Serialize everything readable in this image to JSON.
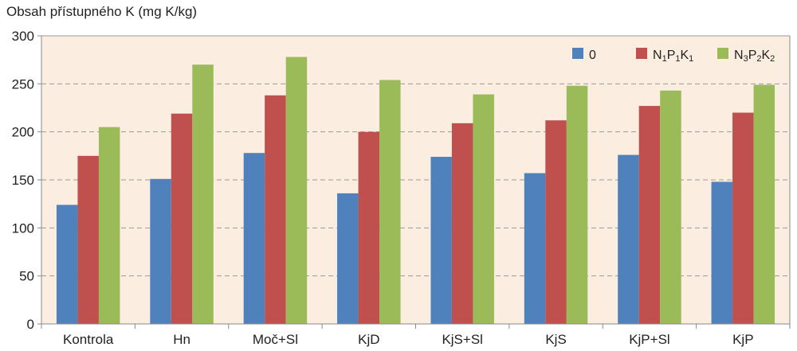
{
  "chart_data": {
    "type": "bar",
    "ylabel": "Obsah přístupného K (mg K/kg)",
    "xlabel": "",
    "title": "",
    "ylim": [
      0,
      300
    ],
    "yticks": [
      0,
      50,
      100,
      150,
      200,
      250,
      300
    ],
    "grid": true,
    "legend_position": "top-right",
    "categories": [
      "Kontrola",
      "Hn",
      "Moč+Sl",
      "KjD",
      "KjS+Sl",
      "KjS",
      "KjP+Sl",
      "KjP"
    ],
    "series": [
      {
        "name": "0",
        "legend": [
          {
            "t": "0",
            "sub": false
          }
        ],
        "color": "#4f81bd",
        "values": [
          124,
          151,
          178,
          136,
          174,
          157,
          176,
          148
        ]
      },
      {
        "name": "N1P1K1",
        "legend": [
          {
            "t": "N",
            "sub": false
          },
          {
            "t": "1",
            "sub": true
          },
          {
            "t": "P",
            "sub": false
          },
          {
            "t": "1",
            "sub": true
          },
          {
            "t": "K",
            "sub": false
          },
          {
            "t": "1",
            "sub": true
          }
        ],
        "color": "#c0504d",
        "values": [
          175,
          219,
          238,
          200,
          209,
          212,
          227,
          220
        ]
      },
      {
        "name": "N3P2K2",
        "legend": [
          {
            "t": "N",
            "sub": false
          },
          {
            "t": "3",
            "sub": true
          },
          {
            "t": "P",
            "sub": false
          },
          {
            "t": "2",
            "sub": true
          },
          {
            "t": "K",
            "sub": false
          },
          {
            "t": "2",
            "sub": true
          }
        ],
        "color": "#9bbb59",
        "values": [
          205,
          270,
          278,
          254,
          239,
          248,
          243,
          249
        ]
      }
    ],
    "plot_background": "#fbeee0",
    "grid_color": "#9a9a9a",
    "axis_color": "#8a8a8a"
  }
}
